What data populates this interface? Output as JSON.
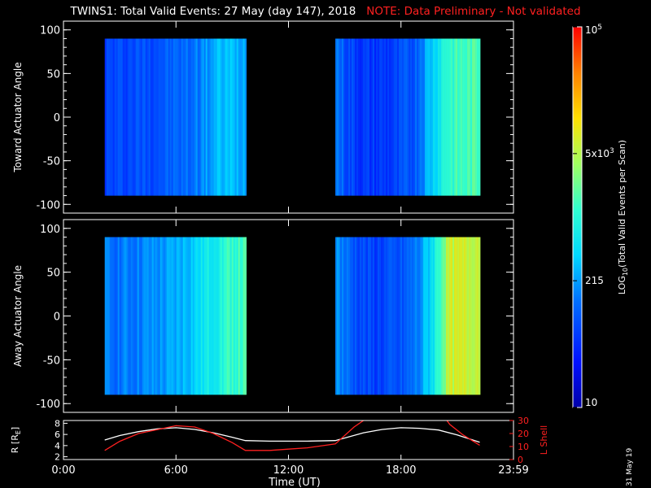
{
  "header": {
    "title": "TWINS1: Total Valid Events: 27 May (day 147), 2018",
    "note": "NOTE: Data Preliminary - Not validated"
  },
  "datestamp": "31 May 19",
  "chart_data": [
    {
      "type": "heatmap",
      "ylabel": "Toward Actuator Angle",
      "ylim": [
        -110,
        110
      ],
      "yticks": [
        "100",
        "50",
        "0",
        "-50",
        "-100"
      ],
      "xlim": [
        0,
        24
      ],
      "segments": [
        {
          "start_hour": 2.2,
          "end_hour": 9.7,
          "angle_range": [
            -90,
            90
          ],
          "profile": [
            [
              0,
              0.2
            ],
            [
              1.5,
              0.22
            ],
            [
              3,
              0.24
            ],
            [
              4.5,
              0.27
            ],
            [
              5.5,
              0.33
            ],
            [
              6.2,
              0.37
            ],
            [
              7.5,
              0.36
            ]
          ]
        },
        {
          "start_hour": 14.5,
          "end_hour": 22.2,
          "angle_range": [
            -90,
            90
          ],
          "profile": [
            [
              0,
              0.3
            ],
            [
              0.6,
              0.22
            ],
            [
              1.5,
              0.18
            ],
            [
              3.2,
              0.19
            ],
            [
              4.2,
              0.25
            ],
            [
              5.0,
              0.38
            ],
            [
              5.9,
              0.52
            ],
            [
              7.7,
              0.55
            ]
          ]
        }
      ]
    },
    {
      "type": "heatmap",
      "ylabel": "Away Actuator Angle",
      "ylim": [
        -110,
        110
      ],
      "yticks": [
        "100",
        "50",
        "0",
        "-50",
        "-100"
      ],
      "xlim": [
        0,
        24
      ],
      "segments": [
        {
          "start_hour": 2.2,
          "end_hour": 9.7,
          "angle_range": [
            -90,
            90
          ],
          "profile": [
            [
              0,
              0.28
            ],
            [
              2,
              0.3
            ],
            [
              3.5,
              0.33
            ],
            [
              4.8,
              0.4
            ],
            [
              5.8,
              0.47
            ],
            [
              6.6,
              0.52
            ],
            [
              7.5,
              0.53
            ]
          ]
        },
        {
          "start_hour": 14.5,
          "end_hour": 22.2,
          "angle_range": [
            -90,
            90
          ],
          "profile": [
            [
              0,
              0.33
            ],
            [
              0.8,
              0.25
            ],
            [
              1.8,
              0.2
            ],
            [
              3.4,
              0.22
            ],
            [
              4.4,
              0.3
            ],
            [
              5.2,
              0.45
            ],
            [
              6.0,
              0.68
            ],
            [
              7.7,
              0.7
            ]
          ]
        }
      ]
    },
    {
      "type": "line",
      "ylabel_left": "R [R",
      "ylabel_left_sub": "E",
      "ylabel_right": "L Shell",
      "yticks_left": [
        "8",
        "6",
        "4",
        "2"
      ],
      "yticks_right": [
        "30",
        "20",
        "10",
        "0"
      ],
      "ylim_left": [
        1.5,
        8.5
      ],
      "ylim_right": [
        0,
        30
      ],
      "series": [
        {
          "color": "#ffffff",
          "axis": "left",
          "x": [
            2.2,
            3,
            4,
            5,
            6,
            7,
            8,
            9,
            9.7,
            11,
            12,
            13,
            14.5,
            16,
            17,
            18,
            19,
            20,
            21,
            22.2
          ],
          "y": [
            5.0,
            5.8,
            6.5,
            7.0,
            7.2,
            6.9,
            6.3,
            5.5,
            4.9,
            4.8,
            4.8,
            4.8,
            4.9,
            6.3,
            6.9,
            7.2,
            7.1,
            6.8,
            5.9,
            4.6
          ]
        },
        {
          "color": "#ff2020",
          "axis": "right",
          "x": [
            2.2,
            3,
            4,
            5,
            6,
            7,
            8,
            9,
            9.7,
            11,
            12,
            13,
            14.5,
            15.5,
            16.3,
            16.6,
            20.3,
            20.6,
            21.3,
            22.2
          ],
          "y": [
            7,
            14,
            20,
            23,
            26,
            25,
            20,
            13,
            7,
            7,
            8,
            9,
            12,
            25,
            33,
            33,
            33,
            27,
            19,
            11
          ]
        }
      ]
    }
  ],
  "xaxis": {
    "label": "Time (UT)",
    "ticks": [
      "0:00",
      "6:00",
      "12:00",
      "18:00",
      "23:59"
    ],
    "tick_hours": [
      0,
      6,
      12,
      18,
      24
    ]
  },
  "colorbar": {
    "label_pre": "LOG",
    "label_sub": "10",
    "label_post": "(Total Valid Events per Scan)",
    "ticks": [
      {
        "label": "10",
        "sup": "",
        "level": 0.0
      },
      {
        "label": "215",
        "sup": "",
        "level": 0.333
      },
      {
        "label": "5x10",
        "sup": "3",
        "level": 0.667
      },
      {
        "label": "10",
        "sup": "5",
        "level": 1.0
      }
    ]
  },
  "colors": {
    "background": "#000000",
    "note": "#ff2020",
    "axes": "#ffffff"
  }
}
